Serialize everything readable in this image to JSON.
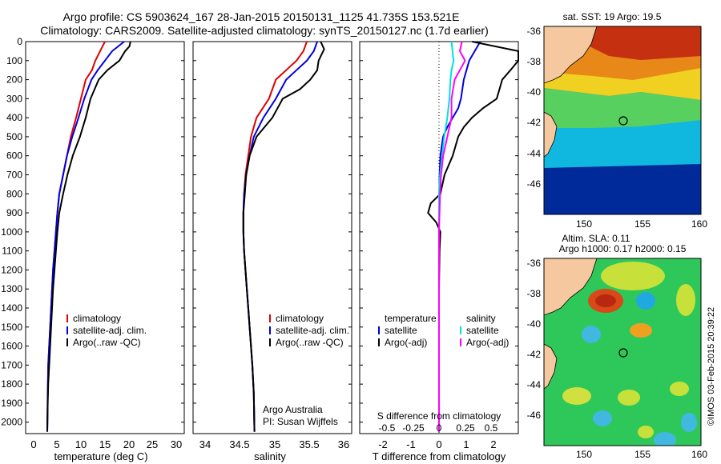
{
  "header": {
    "line1": "Argo profile: CS 5903624_167 28-Jan-2015 20150131_1125 41.735S 153.521E",
    "line2": "Climatology: CARS2009. Satellite-adjusted climatology: synTS_20150127.nc (1.7d earlier)"
  },
  "colors": {
    "climatology": "#e00000",
    "satellite_temp": "#0000e0",
    "argo": "#000000",
    "satellite_sal": "#00e0e0",
    "argo_sal": "#ff00ff",
    "land": "#f5c8a0"
  },
  "depth_ticks": [
    0,
    100,
    200,
    300,
    400,
    500,
    600,
    700,
    800,
    900,
    1000,
    1100,
    1200,
    1300,
    1400,
    1500,
    1600,
    1700,
    1800,
    1900,
    2000
  ],
  "panels": {
    "temperature": {
      "xlabel": "temperature (deg C)",
      "xticks": [
        "0",
        "5",
        "10",
        "15",
        "20",
        "25",
        "30"
      ],
      "legend": [
        "climatology",
        "satellite-adj. clim.",
        "Argo(..raw -QC)"
      ]
    },
    "salinity": {
      "xlabel": "salinity",
      "xticks": [
        "34",
        "34.5",
        "35",
        "35.5",
        "36"
      ],
      "legend": [
        "climatology",
        "satellite-adj. clim.",
        "Argo(..raw -QC)"
      ],
      "credit1": "Argo Australia",
      "credit2": "PI: Susan Wijffels"
    },
    "difference": {
      "xlabel": "T difference from climatology",
      "top_label": "S difference from climatology",
      "xticks": [
        "-2",
        "-1",
        "0",
        "1",
        "2"
      ],
      "sticks": [
        "-0.5",
        "-0.25",
        "0",
        "0.25",
        "0.5"
      ],
      "legend_t_title": "temperature",
      "legend_s_title": "salinity",
      "legend_t": [
        "satellite",
        "Argo(-adj)"
      ],
      "legend_s": [
        "satellite",
        "Argo(-adj)"
      ]
    }
  },
  "maps": {
    "sst": {
      "title": "sat. SST: 19 Argo: 19.5",
      "yticks": [
        "-36",
        "-38",
        "-40",
        "-42",
        "-44",
        "-46"
      ],
      "xticks": [
        "150",
        "155",
        "160"
      ]
    },
    "sla": {
      "title1": "Altim. SLA: 0.11",
      "title2": "Argo h1000: 0.17 h2000: 0.15",
      "yticks": [
        "-36",
        "-38",
        "-40",
        "-42",
        "-44",
        "-46"
      ],
      "xticks": [
        "150",
        "155",
        "160"
      ]
    },
    "credit": "©IMOS 03-Feb-2015 20:39:22"
  },
  "chart_data": [
    {
      "type": "line",
      "name": "temperature profile",
      "xlabel": "temperature (deg C)",
      "ylabel": "",
      "xlim": [
        -2,
        31
      ],
      "ylim": [
        2060,
        0
      ],
      "series": [
        {
          "name": "climatology",
          "x": [
            14.5,
            13.3,
            12.5,
            11.8,
            10.5,
            9.5,
            8.5,
            7.4,
            6.6,
            5.8,
            5.0,
            4.6,
            4.3,
            4.0,
            3.7,
            3.5,
            3.3,
            3.1,
            2.9,
            2.7,
            2.6,
            2.5
          ],
          "y": [
            0,
            60,
            100,
            150,
            200,
            300,
            400,
            500,
            600,
            700,
            800,
            900,
            1000,
            1100,
            1200,
            1300,
            1400,
            1500,
            1600,
            1700,
            1850,
            2050
          ]
        },
        {
          "name": "satellite-adj. clim.",
          "x": [
            18.5,
            16,
            14.5,
            13,
            11.7,
            10.2,
            9,
            7.7,
            6.6,
            5.8,
            5.0,
            4.6,
            4.3,
            4.0,
            3.7,
            3.5,
            3.3,
            3.1,
            2.9,
            2.7,
            2.6,
            2.5
          ],
          "y": [
            0,
            50,
            100,
            150,
            200,
            300,
            400,
            500,
            600,
            700,
            800,
            900,
            1000,
            1100,
            1200,
            1300,
            1400,
            1500,
            1600,
            1700,
            1850,
            2050
          ]
        },
        {
          "name": "Argo(..raw -QC)",
          "x": [
            19.8,
            19.6,
            18.7,
            17.5,
            15,
            13.2,
            11.5,
            10.5,
            9.3,
            7.8,
            6.7,
            5.8,
            5.0,
            4.6,
            4.3,
            4.0,
            3.7,
            3.5,
            3.3,
            3.1,
            2.9,
            2.7,
            2.6,
            2.5
          ],
          "y": [
            0,
            25,
            50,
            100,
            150,
            200,
            300,
            400,
            500,
            600,
            700,
            800,
            900,
            1000,
            1100,
            1200,
            1300,
            1400,
            1500,
            1600,
            1700,
            1800,
            1900,
            2050
          ]
        }
      ]
    },
    {
      "type": "line",
      "name": "salinity profile",
      "xlabel": "salinity",
      "ylabel": "",
      "xlim": [
        33.8,
        36.1
      ],
      "ylim": [
        2060,
        0
      ],
      "series": [
        {
          "name": "climatology",
          "x": [
            35.45,
            35.4,
            35.3,
            35.15,
            35.0,
            34.9,
            34.72,
            34.64,
            34.6,
            34.56,
            34.54,
            34.53,
            34.53,
            34.54,
            34.56,
            34.58,
            34.6,
            34.62,
            34.64,
            34.66,
            34.68,
            34.69
          ],
          "y": [
            0,
            50,
            100,
            150,
            200,
            300,
            400,
            500,
            600,
            700,
            800,
            900,
            1000,
            1100,
            1200,
            1300,
            1400,
            1500,
            1600,
            1700,
            1850,
            2050
          ]
        },
        {
          "name": "satellite-adj. clim.",
          "x": [
            35.6,
            35.55,
            35.45,
            35.3,
            35.15,
            35.0,
            34.82,
            34.68,
            34.62,
            34.57,
            34.54,
            34.53,
            34.53,
            34.54,
            34.56,
            34.58,
            34.6,
            34.62,
            34.64,
            34.66,
            34.68,
            34.69
          ],
          "y": [
            0,
            50,
            100,
            150,
            200,
            300,
            400,
            500,
            600,
            700,
            800,
            900,
            1000,
            1100,
            1200,
            1300,
            1400,
            1500,
            1600,
            1700,
            1850,
            2050
          ]
        },
        {
          "name": "Argo(..raw -QC)",
          "x": [
            35.65,
            35.7,
            35.62,
            35.6,
            35.5,
            35.35,
            35.1,
            34.95,
            34.72,
            34.62,
            34.57,
            34.55,
            34.53,
            34.53,
            34.54,
            34.56,
            34.58,
            34.6,
            34.62,
            34.64,
            34.66,
            34.68,
            34.69
          ],
          "y": [
            0,
            40,
            100,
            150,
            200,
            250,
            300,
            400,
            500,
            600,
            700,
            800,
            900,
            1000,
            1100,
            1200,
            1300,
            1400,
            1500,
            1600,
            1700,
            1850,
            2050
          ]
        }
      ]
    },
    {
      "type": "line",
      "name": "difference from climatology",
      "xlabel": "T difference from climatology",
      "ylabel": "",
      "xlim": [
        -2.9,
        2.8
      ],
      "ylim": [
        2060,
        0
      ],
      "series": [
        {
          "name": "temperature satellite",
          "x": [
            1.5,
            1.3,
            1.1,
            1.0,
            0.9,
            0.8,
            0.7,
            0.5,
            0.3,
            0.15,
            0.05,
            0.02,
            0.01,
            0,
            0,
            0,
            0,
            0,
            0,
            0,
            0
          ],
          "y": [
            0,
            50,
            100,
            150,
            200,
            300,
            350,
            400,
            450,
            500,
            600,
            700,
            800,
            900,
            1000,
            1200,
            1400,
            1600,
            1800,
            1950,
            2050
          ]
        },
        {
          "name": "temperature Argo(-adj)",
          "x": [
            1.2,
            4.5,
            3.0,
            2.6,
            2.3,
            2.2,
            2.1,
            1.6,
            1.2,
            0.9,
            0.7,
            0.5,
            0.2,
            0.05,
            -0.3,
            -0.4,
            -0.1,
            0.05,
            0.02,
            0,
            0,
            0,
            0
          ],
          "y": [
            0,
            50,
            100,
            150,
            200,
            250,
            300,
            350,
            400,
            450,
            500,
            600,
            700,
            800,
            850,
            900,
            950,
            1000,
            1100,
            1300,
            1500,
            1800,
            2050
          ]
        },
        {
          "name": "salinity satellite",
          "x": [
            0.12,
            0.13,
            0.14,
            0.12,
            0.11,
            0.1,
            0.08,
            0.05,
            0.03,
            0.01,
            0,
            0,
            0,
            0
          ],
          "y": [
            0,
            50,
            100,
            150,
            200,
            300,
            400,
            500,
            600,
            700,
            800,
            1000,
            1500,
            2050
          ]
        },
        {
          "name": "salinity Argo(-adj)",
          "x": [
            0.22,
            0.2,
            0.25,
            0.2,
            0.15,
            0.12,
            0.12,
            0.08,
            0.04,
            0.02,
            0.01,
            0,
            0,
            0
          ],
          "y": [
            0,
            50,
            100,
            150,
            200,
            300,
            400,
            500,
            600,
            700,
            800,
            1000,
            1500,
            2050
          ]
        }
      ]
    },
    {
      "type": "heatmap",
      "name": "sat. SST map",
      "xlim": [
        147,
        160
      ],
      "ylim": [
        -47.5,
        -35.7
      ],
      "argo_position": {
        "lon": 153.521,
        "lat": -41.735
      }
    },
    {
      "type": "heatmap",
      "name": "Altim. SLA map",
      "xlim": [
        147,
        160
      ],
      "ylim": [
        -47.5,
        -35.7
      ],
      "argo_position": {
        "lon": 153.521,
        "lat": -41.735
      }
    }
  ]
}
